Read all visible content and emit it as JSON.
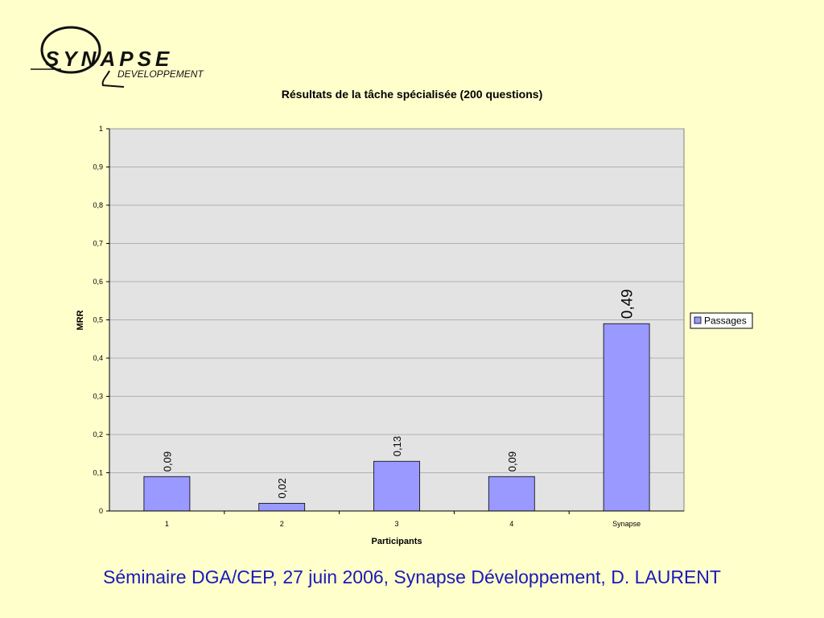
{
  "logo": {
    "line1": "SYNAPSE",
    "line2": "DEVELOPPEMENT"
  },
  "footer": "Séminaire DGA/CEP, 27 juin 2006, Synapse Développement, D. LAURENT",
  "chart_data": {
    "type": "bar",
    "title": "Résultats de la tâche spécialisée (200 questions)",
    "xlabel": "Participants",
    "ylabel": "MRR",
    "categories": [
      "1",
      "2",
      "3",
      "4",
      "Synapse"
    ],
    "series": [
      {
        "name": "Passages",
        "values": [
          0.09,
          0.02,
          0.13,
          0.09,
          0.49
        ],
        "color": "#9999ff"
      }
    ],
    "data_labels": [
      "0,09",
      "0,02",
      "0,13",
      "0,09",
      "0,49"
    ],
    "ylim": [
      0,
      1
    ],
    "yticks": [
      0,
      0.1,
      0.2,
      0.3,
      0.4,
      0.5,
      0.6,
      0.7,
      0.8,
      0.9,
      1
    ],
    "ytick_labels": [
      "0",
      "0,1",
      "0,2",
      "0,3",
      "0,4",
      "0,5",
      "0,6",
      "0,7",
      "0,8",
      "0,9",
      "1"
    ],
    "grid": true,
    "legend": "right",
    "plot_background": "#e3e3e3"
  }
}
